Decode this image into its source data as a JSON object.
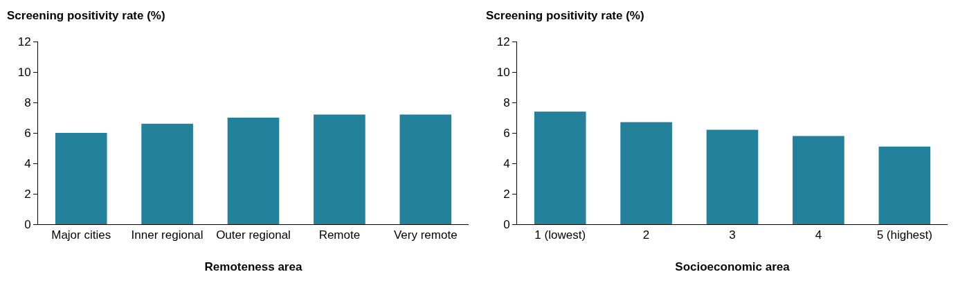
{
  "chart_data": [
    {
      "type": "bar",
      "ylabel": "Screening positivity rate (%)",
      "xlabel": "Remoteness area",
      "categories": [
        "Major cities",
        "Inner regional",
        "Outer regional",
        "Remote",
        "Very remote"
      ],
      "values": [
        6.0,
        6.6,
        7.0,
        7.2,
        7.2
      ],
      "color": "#23819b",
      "ylim": [
        0,
        12
      ],
      "yticks": [
        0,
        2,
        4,
        6,
        8,
        10,
        12
      ],
      "grid": false,
      "legend": false
    },
    {
      "type": "bar",
      "ylabel": "Screening positivity rate (%)",
      "xlabel": "Socioeconomic area",
      "categories": [
        "1 (lowest)",
        "2",
        "3",
        "4",
        "5 (highest)"
      ],
      "values": [
        7.4,
        6.7,
        6.2,
        5.8,
        5.1
      ],
      "color": "#23819b",
      "ylim": [
        0,
        12
      ],
      "yticks": [
        0,
        2,
        4,
        6,
        8,
        10,
        12
      ],
      "grid": false,
      "legend": false
    }
  ]
}
